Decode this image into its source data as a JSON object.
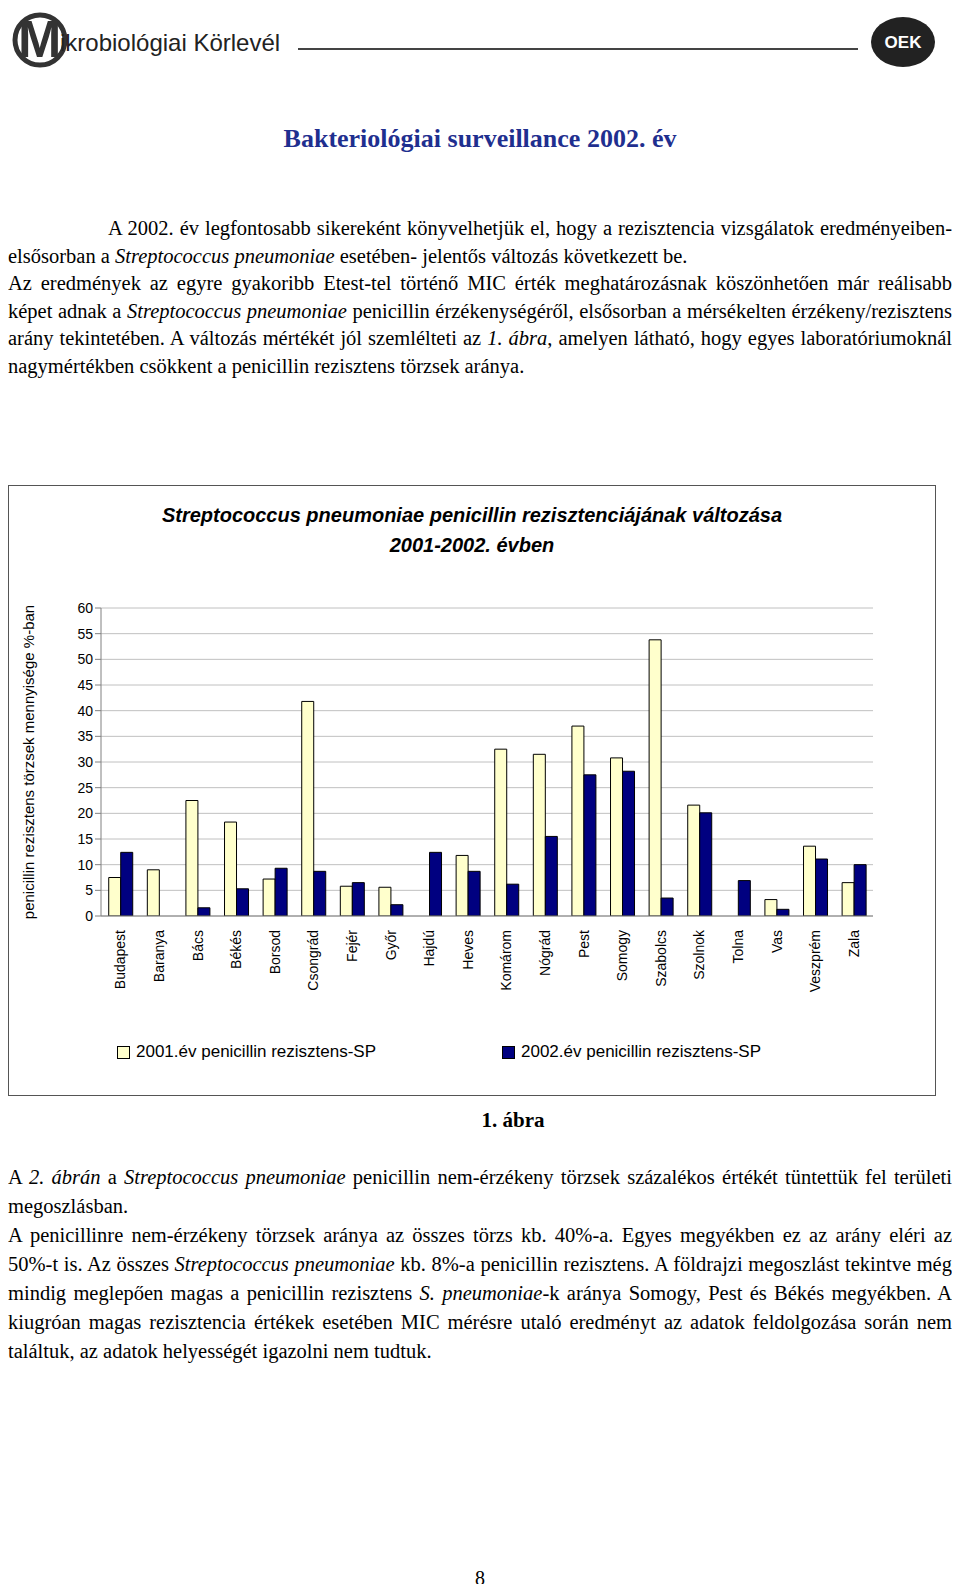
{
  "header": {
    "journal": "Mikrobiológiai Körlevél",
    "logo": "OEK"
  },
  "title": "Bakteriológiai surveillance 2002. év",
  "paragraphs_top": [
    [
      "A 2002. év legfontosabb sikereként könyvelhetjük el, hogy a rezisztencia vizsgálatok eredményeiben- elsősorban a ",
      "Streptococcus pneumoniae",
      " esetében- jelentős változás következett be."
    ],
    [
      "Az eredmények az egyre gyakoribb Etest-tel történő MIC érték meghatározásnak köszönhetően már reálisabb képet adnak a ",
      "Streptococcus pneumoniae",
      " penicillin érzékenységéről, elsősorban a mérsékelten érzékeny/rezisztens arány tekintetében. A változás mértékét jól szemlélteti az ",
      "1. ábra",
      ", amelyen látható, hogy egyes laboratóriumoknál nagymértékben csökkent a penicillin rezisztens törzsek aránya."
    ]
  ],
  "chart_data": {
    "type": "bar",
    "title": "Streptococcus pneumoniae penicillin rezisztenciájának változása\n2001-2002. évben",
    "y_label": "penicillin rezisztens törzsek mennyisége %-ban",
    "categories": [
      "Budapest",
      "Baranya",
      "Bács",
      "Békés",
      "Borsod",
      "Csongrád",
      "Fejér",
      "Győr",
      "Hajdú",
      "Heves",
      "Komárom",
      "Nógrád",
      "Pest",
      "Somogy",
      "Szabolcs",
      "Szolnok",
      "Tolna",
      "Vas",
      "Veszprém",
      "Zala"
    ],
    "series": [
      {
        "name": "2001.év penicillin rezisztens-SP",
        "color": "#ffffcc",
        "values": [
          7.5,
          9,
          22.5,
          18.3,
          7.2,
          41.8,
          5.8,
          5.6,
          null,
          11.8,
          32.5,
          31.5,
          37,
          30.8,
          53.8,
          21.6,
          null,
          3.2,
          13.6,
          6.5
        ]
      },
      {
        "name": "2002.év penicillin rezisztens-SP",
        "color": "#000080",
        "values": [
          12.4,
          null,
          1.6,
          5.3,
          9.3,
          8.7,
          6.5,
          2.2,
          12.4,
          8.7,
          6.2,
          15.5,
          27.5,
          28.2,
          3.5,
          20.1,
          6.9,
          1.3,
          11.1,
          10
        ]
      }
    ],
    "ylim": [
      0,
      60
    ],
    "yticks": [
      0,
      5,
      10,
      15,
      20,
      25,
      30,
      35,
      40,
      45,
      50,
      55,
      60
    ],
    "grid": true,
    "legend": "bottom"
  },
  "caption": "1. ábra",
  "paragraphs_bottom": [
    [
      "A ",
      "2. ábrán",
      " a ",
      "Streptococcus pneumoniae",
      " penicillin nem-érzékeny törzsek százalékos értékét tüntettük fel területi megoszlásban."
    ],
    [
      "A penicillinre nem-érzékeny törzsek aránya az összes törzs kb. 40%-a. Egyes megyékben ez az arány eléri az 50%-t is. Az összes ",
      "Streptococcus pneumoniae",
      " kb. 8%-a penicillin rezisztens. A földrajzi megoszlást tekintve még mindig meglepően magas a penicillin rezisztens ",
      "S. pneumoniae",
      "-k aránya Somogy, Pest és Békés megyékben. A kiugróan magas rezisztencia értékek esetében MIC mérésre utaló eredményt az adatok feldolgozása során nem találtuk, az adatok helyességét igazolni nem tudtuk."
    ]
  ],
  "page_number": "8"
}
